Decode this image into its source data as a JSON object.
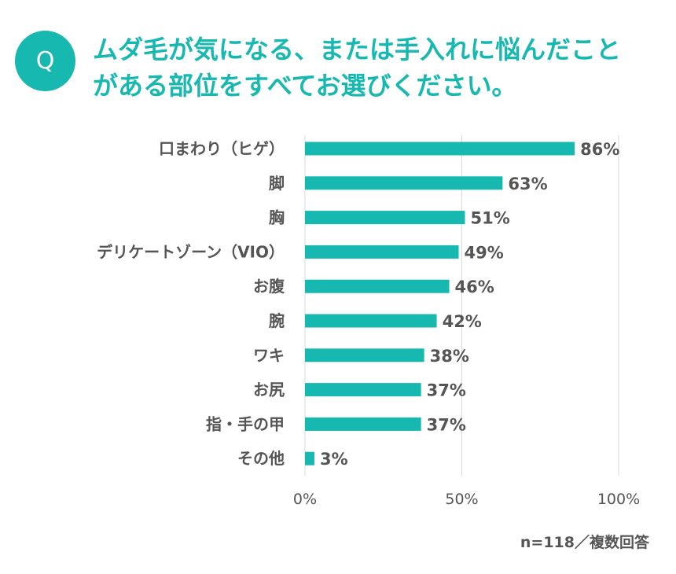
{
  "question": {
    "badge": "Q",
    "line1": "ムダ毛が気になる、または手入れに悩んだこと",
    "line2": "がある部位をすべてお選びください。"
  },
  "footnote": "n=118／複数回答",
  "colors": {
    "accent": "#17b8b0",
    "bar": "#17b8b0",
    "label": "#555555",
    "grid": "#d9d9d9"
  },
  "chart_data": {
    "type": "bar",
    "orientation": "horizontal",
    "categories": [
      "口まわり（ヒゲ）",
      "脚",
      "胸",
      "デリケートゾーン（VIO）",
      "お腹",
      "腕",
      "ワキ",
      "お尻",
      "指・手の甲",
      "その他"
    ],
    "values": [
      86,
      63,
      51,
      49,
      46,
      42,
      38,
      37,
      37,
      3
    ],
    "value_labels": [
      "86%",
      "63%",
      "51%",
      "49%",
      "46%",
      "42%",
      "38%",
      "37%",
      "37%",
      "3%"
    ],
    "xlim": [
      0,
      100
    ],
    "xticks": [
      0,
      50,
      100
    ],
    "xtick_labels": [
      "0%",
      "50%",
      "100%"
    ],
    "grid": true
  }
}
